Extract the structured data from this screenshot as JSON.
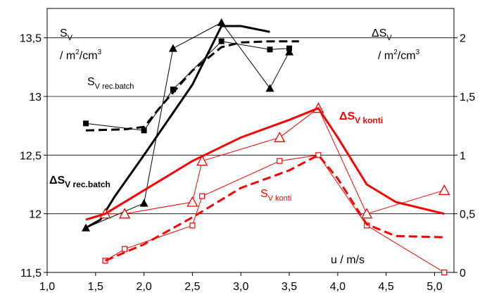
{
  "chart_data": {
    "type": "line",
    "x_ticks": [
      "1,0",
      "1,5",
      "2,0",
      "2,5",
      "3,0",
      "3,5",
      "4,0",
      "4,5",
      "5,0"
    ],
    "y_left_ticks": [
      "11,5",
      "12",
      "12,5",
      "13",
      "13,5"
    ],
    "y_right_ticks": [
      "0",
      "0,5",
      "1",
      "1,5",
      "2"
    ],
    "xlim": [
      1.0,
      5.2
    ],
    "ylim_left": [
      11.5,
      13.75
    ],
    "ylim_right": [
      0,
      2.25
    ],
    "grid": "horizontal",
    "labels": {
      "sv_main": "S",
      "sv_main_sub": "V",
      "sv_units": "/ m",
      "sv_units_sup": "2",
      "sv_units_tail": "/cm",
      "sv_units_sup2": "3",
      "dsv_main": "ΔS",
      "dsv_main_sub": "V",
      "dsv_units": "/ m",
      "dsv_units_sup": "2",
      "dsv_units_tail": "/cm",
      "dsv_units_sup2": "3",
      "sv_rec_batch": "S",
      "sv_rec_batch_sub": "V rec.batch",
      "dsv_rec_batch": "ΔS",
      "dsv_rec_batch_sub": "V rec.batch",
      "dsv_konti": "ΔS",
      "dsv_konti_sub": "V konti",
      "sv_konti": "S",
      "sv_konti_sub": "V konti",
      "x_axis_label": "u / m/s"
    },
    "series": [
      {
        "axis": "left",
        "color": "#000000",
        "marker": "square",
        "x": [
          1.4,
          2.0,
          2.3,
          2.8,
          3.3,
          3.5
        ],
        "y": [
          12.77,
          12.71,
          13.06,
          13.47,
          13.4,
          13.41
        ]
      },
      {
        "axis": "left",
        "color": "#000000",
        "style": "dashed",
        "x": [
          1.4,
          1.8,
          2.0,
          2.2,
          2.5,
          2.8,
          3.0,
          3.3,
          3.6
        ],
        "y": [
          12.71,
          12.72,
          12.74,
          12.94,
          13.22,
          13.42,
          13.46,
          13.47,
          13.47
        ]
      },
      {
        "axis": "right",
        "color": "#000000",
        "marker": "triangle",
        "x": [
          1.4,
          2.0,
          2.3,
          2.8,
          3.3,
          3.5
        ],
        "y": [
          0.38,
          0.59,
          1.91,
          2.13,
          1.57,
          1.88
        ]
      },
      {
        "axis": "right",
        "color": "#000000",
        "x": [
          1.4,
          1.55,
          1.7,
          2.0,
          2.5,
          2.8,
          3.0,
          3.3
        ],
        "y": [
          0.38,
          0.45,
          0.65,
          1.0,
          1.6,
          2.1,
          2.1,
          2.05
        ]
      },
      {
        "axis": "right",
        "color": "#ff0000",
        "marker": "open-triangle",
        "x": [
          1.6,
          1.8,
          2.5,
          2.6,
          3.4,
          3.8,
          4.3,
          5.1
        ],
        "y": [
          0.5,
          0.5,
          0.6,
          0.95,
          1.15,
          1.4,
          0.5,
          0.7
        ]
      },
      {
        "axis": "right",
        "color": "#ff0000",
        "x": [
          1.4,
          1.6,
          2.0,
          2.5,
          3.0,
          3.5,
          3.8,
          4.0,
          4.3,
          4.6,
          5.1
        ],
        "y": [
          0.45,
          0.5,
          0.7,
          0.95,
          1.15,
          1.3,
          1.4,
          1.15,
          0.75,
          0.6,
          0.5
        ]
      },
      {
        "axis": "left",
        "color": "#ff0000",
        "marker": "open-square",
        "x": [
          1.6,
          1.8,
          2.5,
          2.6,
          3.4,
          3.8,
          4.3,
          5.1
        ],
        "y": [
          11.6,
          11.7,
          11.9,
          12.15,
          12.45,
          12.5,
          11.9,
          11.5
        ]
      },
      {
        "axis": "left",
        "color": "#ff0000",
        "style": "dashed",
        "x": [
          1.6,
          2.0,
          2.5,
          3.0,
          3.5,
          3.8,
          4.0,
          4.3,
          4.6,
          5.1
        ],
        "y": [
          11.6,
          11.74,
          11.97,
          12.22,
          12.37,
          12.5,
          12.3,
          11.91,
          11.81,
          11.8
        ]
      }
    ]
  }
}
